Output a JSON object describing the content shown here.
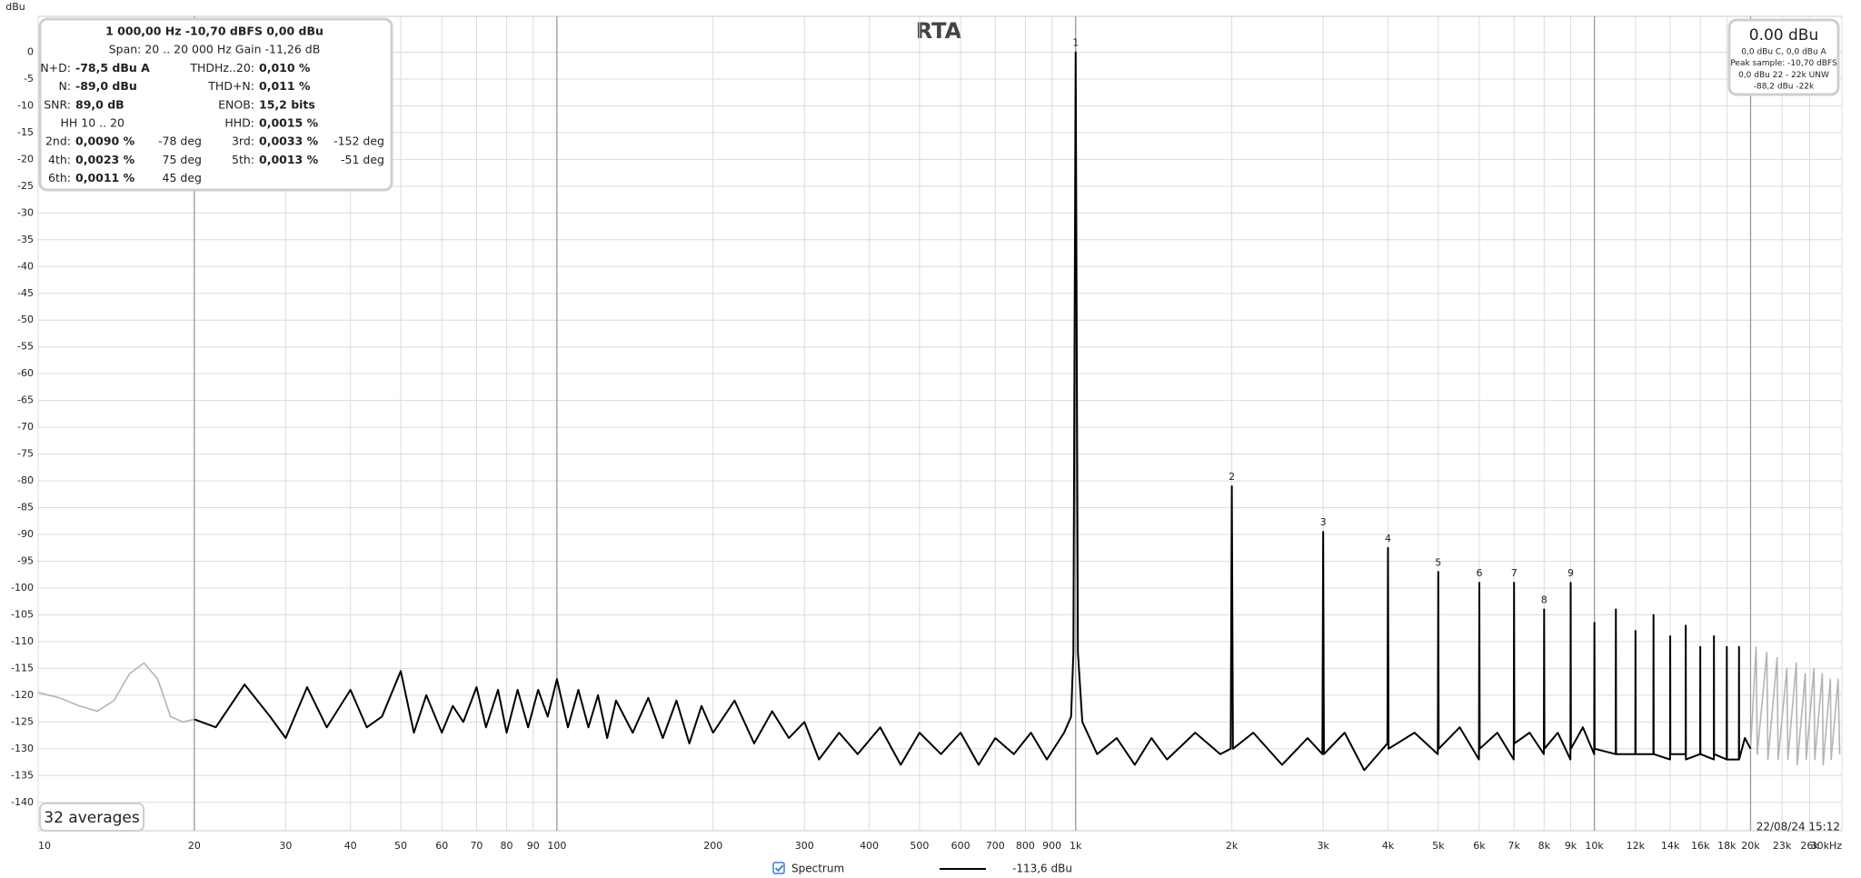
{
  "chart_data": {
    "type": "line",
    "title": "RTA",
    "y_label": "dBu",
    "xlog": true,
    "grid": true,
    "xlim": [
      10,
      30000
    ],
    "ylim": [
      -145.3,
      6.7
    ],
    "band_edges": [
      20,
      20000
    ],
    "xticks": [
      10,
      20,
      30,
      40,
      50,
      60,
      70,
      80,
      90,
      100,
      200,
      300,
      400,
      500,
      600,
      700,
      800,
      900,
      {
        "value": 1000,
        "label": "1k"
      },
      {
        "value": 2000,
        "label": "2k"
      },
      {
        "value": 3000,
        "label": "3k"
      },
      {
        "value": 4000,
        "label": "4k"
      },
      {
        "value": 5000,
        "label": "5k"
      },
      {
        "value": 6000,
        "label": "6k"
      },
      {
        "value": 7000,
        "label": "7k"
      },
      {
        "value": 8000,
        "label": "8k"
      },
      {
        "value": 9000,
        "label": "9k"
      },
      {
        "value": 10000,
        "label": "10k"
      },
      {
        "value": 12000,
        "label": "12k"
      },
      {
        "value": 14000,
        "label": "14k"
      },
      {
        "value": 16000,
        "label": "16k"
      },
      {
        "value": 18000,
        "label": "18k"
      },
      {
        "value": 20000,
        "label": "20k"
      },
      {
        "value": 23000,
        "label": "23k"
      },
      {
        "value": 26000,
        "label": "26k"
      },
      {
        "value": 30000,
        "label": "30kHz"
      }
    ],
    "yticks": [
      0,
      -5,
      -10,
      -15,
      -20,
      -25,
      -30,
      -35,
      -40,
      -45,
      -50,
      -55,
      -60,
      -65,
      -70,
      -75,
      -80,
      -85,
      -90,
      -95,
      -100,
      -105,
      -110,
      -115,
      -120,
      -125,
      -130,
      -135,
      -140
    ],
    "series": [
      {
        "name": "Spectrum",
        "color": "#000000",
        "x": [
          20,
          22,
          25,
          28,
          30,
          33,
          36,
          40,
          43,
          46,
          50,
          53,
          56,
          60,
          63,
          66,
          70,
          73,
          77,
          80,
          84,
          88,
          92,
          96,
          100,
          105,
          110,
          115,
          120,
          125,
          130,
          140,
          150,
          160,
          170,
          180,
          190,
          200,
          220,
          240,
          260,
          280,
          300,
          320,
          350,
          380,
          420,
          460,
          500,
          550,
          600,
          650,
          700,
          760,
          820,
          880,
          950,
          980,
          990,
          1000,
          1010,
          1030,
          1100,
          1200,
          1300,
          1400,
          1500,
          1700,
          1900,
          1990,
          2000,
          2010,
          2200,
          2500,
          2800,
          2990,
          3000,
          3010,
          3300,
          3600,
          3990,
          4000,
          4010,
          4500,
          4990,
          5000,
          5010,
          5500,
          5990,
          6000,
          6010,
          6500,
          6990,
          7000,
          7010,
          7500,
          7990,
          8000,
          8010,
          8500,
          8990,
          9000,
          9010,
          9500,
          9990,
          10000,
          10010,
          10990,
          11000,
          11010,
          11990,
          12000,
          12010,
          12990,
          13000,
          13010,
          13990,
          14000,
          14010,
          14990,
          15000,
          15010,
          15990,
          16000,
          16010,
          16990,
          17000,
          17010,
          17990,
          18000,
          18010,
          18990,
          19000,
          19010,
          19500,
          20000
        ],
        "values": [
          -124.5,
          -126,
          -118,
          -124,
          -128,
          -118.5,
          -126,
          -119,
          -126,
          -124,
          -115.5,
          -127,
          -120,
          -127,
          -122,
          -125,
          -118.5,
          -126,
          -119,
          -127,
          -119,
          -126,
          -119,
          -124,
          -117,
          -126,
          -119,
          -126,
          -120,
          -128,
          -121,
          -127,
          -120.5,
          -128,
          -121,
          -129,
          -122,
          -127,
          -121,
          -129,
          -123,
          -128,
          -125,
          -132,
          -127,
          -131,
          -126,
          -133,
          -127,
          -131,
          -127,
          -133,
          -128,
          -131,
          -127,
          -132,
          -127,
          -124,
          -112,
          0,
          -112,
          -125,
          -131,
          -128,
          -133,
          -128,
          -132,
          -127,
          -131,
          -130,
          -81,
          -130,
          -127,
          -133,
          -128,
          -131,
          -89.5,
          -131,
          -127,
          -134,
          -129,
          -92.5,
          -130,
          -127,
          -131,
          -97,
          -130,
          -126,
          -132,
          -99,
          -130,
          -127,
          -132,
          -99,
          -129,
          -127,
          -131,
          -104,
          -130,
          -127,
          -132,
          -99,
          -130,
          -126,
          -131,
          -106.5,
          -130,
          -131,
          -104,
          -131,
          -131,
          -108,
          -131,
          -131,
          -105,
          -131,
          -132,
          -109,
          -131,
          -131,
          -107,
          -132,
          -131,
          -111,
          -131,
          -132,
          -109,
          -131,
          -132,
          -111,
          -132,
          -132,
          -111,
          -132,
          -128,
          -130
        ]
      },
      {
        "color": "#b4b4b4",
        "x": [
          10,
          11,
          12,
          13,
          14,
          15,
          16,
          17,
          18,
          19,
          20
        ],
        "values": [
          -119.5,
          -120.5,
          -122,
          -123,
          -121,
          -116,
          -114,
          -117,
          -124,
          -125,
          -124.5
        ]
      },
      {
        "color": "#b4b4b4",
        "x": [
          20000,
          20500,
          20600,
          21500,
          21600,
          22500,
          22600,
          23500,
          23600,
          24500,
          24600,
          25500,
          25600,
          26500,
          26600,
          27500,
          27600,
          28500,
          28600,
          29500,
          29700
        ],
        "values": [
          -130,
          -111,
          -131,
          -112,
          -132,
          -113,
          -132,
          -115,
          -132,
          -114,
          -133,
          -116,
          -132,
          -115,
          -132,
          -116,
          -133,
          -117,
          -132,
          -117,
          -131
        ]
      }
    ],
    "annotations": [
      {
        "label": "1",
        "x": 1000,
        "y": 0
      },
      {
        "label": "2",
        "x": 2000,
        "y": -81
      },
      {
        "label": "3",
        "x": 3000,
        "y": -89.5
      },
      {
        "label": "4",
        "x": 4000,
        "y": -92.5
      },
      {
        "label": "5",
        "x": 5000,
        "y": -97
      },
      {
        "label": "6",
        "x": 6000,
        "y": -99
      },
      {
        "label": "7",
        "x": 7000,
        "y": -99
      },
      {
        "label": "8",
        "x": 8000,
        "y": -104
      },
      {
        "label": "9",
        "x": 9000,
        "y": -99
      }
    ],
    "averages": "32 averages",
    "timestamp": "22/08/24 15:12",
    "legend_readout": "-113,6 dBu"
  },
  "panel": {
    "header": [
      "1 000,00 Hz  -10,70 dBFS  0,00 dBu",
      "Span: 20 .. 20 000 Hz   Gain -11,26 dB"
    ],
    "rows": [
      [
        [
          "N+D:",
          "-78,5 dBu A"
        ],
        [
          "THDHz..20:",
          "0,010 %"
        ]
      ],
      [
        [
          "N:",
          "-89,0 dBu"
        ],
        [
          "THD+N:",
          "0,011 %"
        ]
      ],
      [
        [
          "SNR:",
          "89,0 dB"
        ],
        [
          "ENOB:",
          "15,2 bits"
        ]
      ],
      [
        [
          "HH 10 .. 20"
        ],
        [
          "HHD:",
          "0,0015 %"
        ]
      ],
      [
        [
          "2nd:",
          "0,0090 %",
          "-78 deg"
        ],
        [
          "3rd:",
          "0,0033 %",
          "-152 deg"
        ]
      ],
      [
        [
          "4th:",
          "0,0023 %",
          "75 deg"
        ],
        [
          "5th:",
          "0,0013 %",
          "-51 deg"
        ]
      ],
      [
        [
          "6th:",
          "0,0011 %",
          "45 deg"
        ]
      ]
    ]
  },
  "level_box": {
    "value": "0.00 dBu",
    "lines": [
      "0,0 dBu C, 0,0 dBu A",
      "Peak sample: -10,70 dBFS",
      "0,0 dBu 22 - 22k UNW",
      "-88,2 dBu -22k"
    ]
  }
}
